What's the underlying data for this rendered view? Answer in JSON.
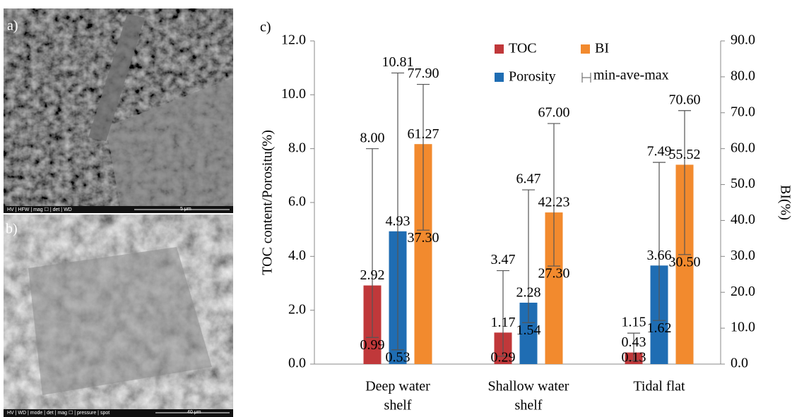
{
  "images": [
    {
      "label": "a)",
      "info": "HV  |  HFW  |  mag ☐  |  det  |  WD",
      "scale": "5 μm"
    },
    {
      "label": "b)",
      "info": "HV  |  WD  |  mode  |  det  |  mag ☐  |  pressure  |  spot",
      "scale": "40 μm"
    }
  ],
  "chart_data": {
    "type": "bar",
    "panel_label": "c)",
    "ylabel": "TOC content/Porositu(%)",
    "y2label": "BI(%)",
    "categories": [
      [
        "Deep water",
        "shelf"
      ],
      [
        "Shallow water",
        "shelf"
      ],
      [
        "Tidal  flat"
      ]
    ],
    "series": [
      {
        "name": "TOC",
        "color": "#c0383a",
        "values": [
          2.92,
          1.17,
          0.43
        ],
        "value_labels": [
          "2.92",
          "1.17",
          "0.43"
        ],
        "min": [
          0.99,
          0.29,
          0.13
        ],
        "min_labels": [
          "0.99",
          "0.29",
          "0.13"
        ],
        "max": [
          8.0,
          3.47,
          1.15
        ],
        "max_labels": [
          "8.00",
          "3.47",
          "1.15"
        ]
      },
      {
        "name": "Porosity",
        "color": "#1f6db3",
        "values": [
          4.93,
          2.28,
          3.66
        ],
        "value_labels": [
          "4.93",
          "2.28",
          "3.66"
        ],
        "min": [
          0.53,
          1.54,
          1.62
        ],
        "min_labels": [
          "0.53",
          "1.54",
          "1.62"
        ],
        "max": [
          10.81,
          6.47,
          7.49
        ],
        "max_labels": [
          "10.81",
          "6.47",
          "7.49"
        ]
      },
      {
        "name": "BI",
        "color": "#f28a2e",
        "axis": "y2",
        "values": [
          61.27,
          42.23,
          55.52
        ],
        "value_labels": [
          "61.27",
          "42.23",
          "55.52"
        ],
        "min": [
          37.3,
          27.3,
          30.5
        ],
        "min_labels": [
          "37.30",
          "27.30",
          "30.50"
        ],
        "max": [
          77.9,
          67.0,
          70.6
        ],
        "max_labels": [
          "77.90",
          "67.00",
          "70.60"
        ]
      }
    ],
    "errorbar_legend": "min-ave-max",
    "ylim": [
      0,
      12
    ],
    "yticks": [
      {
        "value": 0,
        "label": "0.0"
      },
      {
        "value": 2,
        "label": "2.0"
      },
      {
        "value": 4,
        "label": "4.0"
      },
      {
        "value": 6,
        "label": "6.0"
      },
      {
        "value": 8,
        "label": "8.0"
      },
      {
        "value": 10,
        "label": "10.0"
      },
      {
        "value": 12,
        "label": "12.0"
      }
    ],
    "y2lim": [
      0,
      90
    ],
    "y2ticks": [
      {
        "value": 0,
        "label": "0.0"
      },
      {
        "value": 10,
        "label": "10.0"
      },
      {
        "value": 20,
        "label": "20.0"
      },
      {
        "value": 30,
        "label": "30.0"
      },
      {
        "value": 40,
        "label": "40.0"
      },
      {
        "value": 50,
        "label": "50.0"
      },
      {
        "value": 60,
        "label": "60.0"
      },
      {
        "value": 70,
        "label": "70.0"
      },
      {
        "value": 80,
        "label": "80.0"
      },
      {
        "value": 90,
        "label": "90.0"
      }
    ],
    "grid": false
  }
}
